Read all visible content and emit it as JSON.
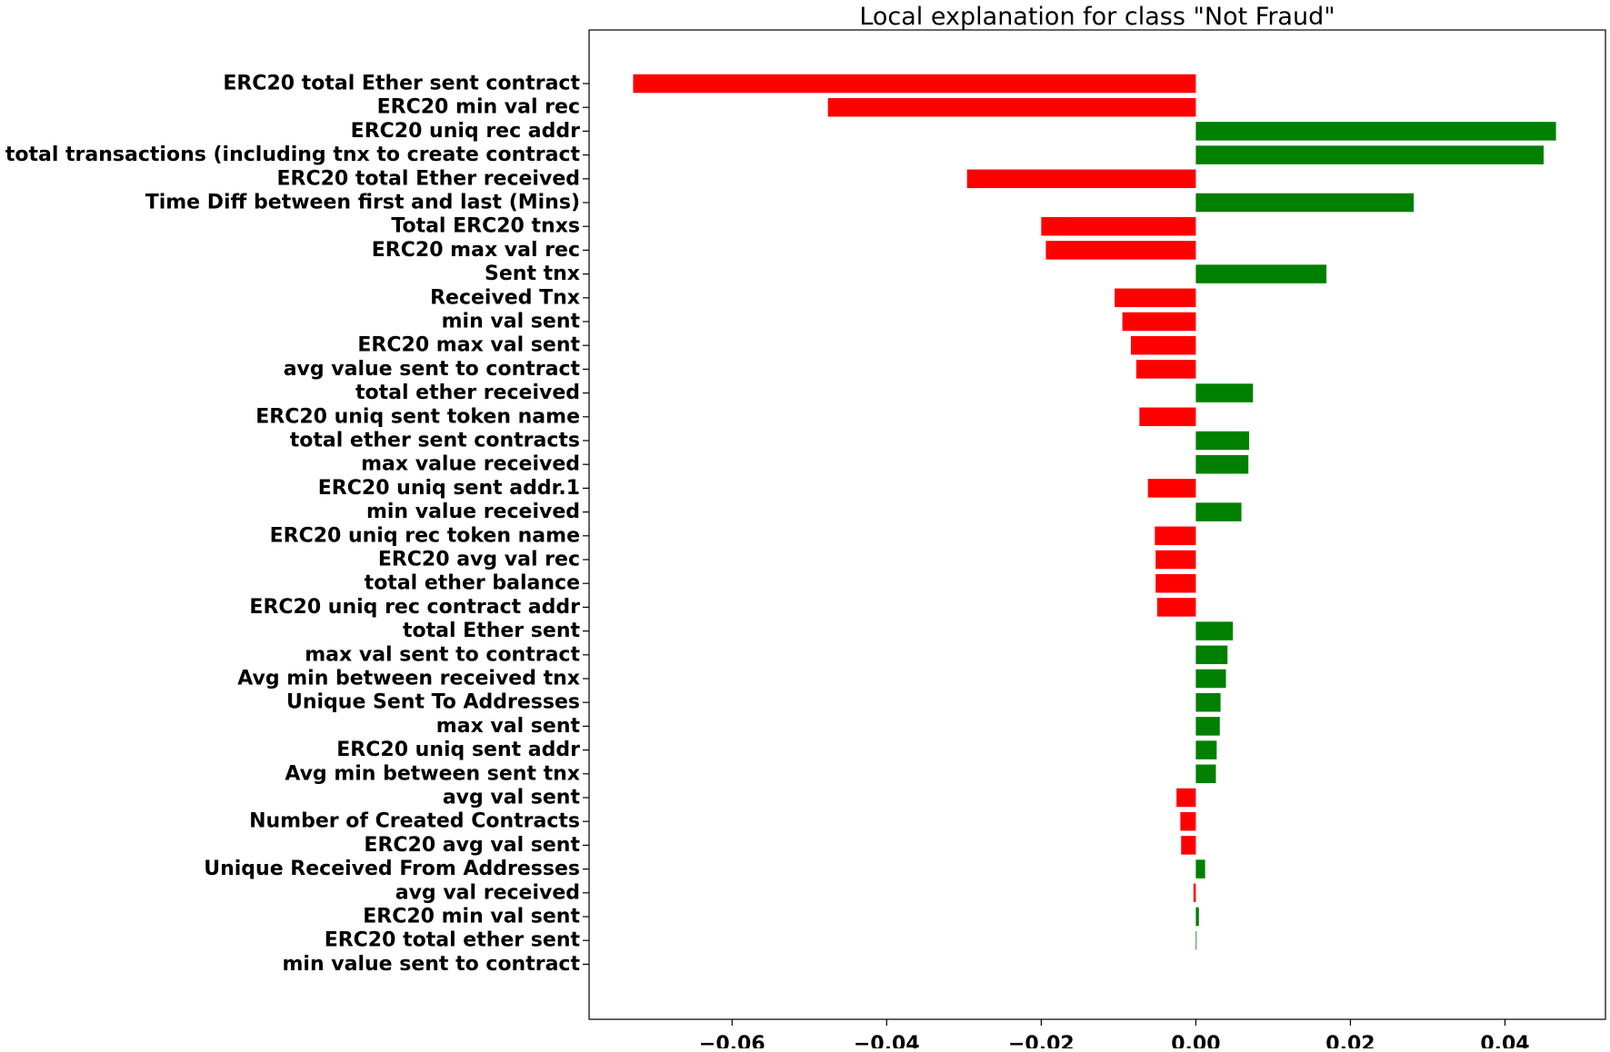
{
  "chart_data": {
    "type": "bar",
    "orientation": "horizontal",
    "title": "Local explanation for class \"Not Fraud\"",
    "xlabel": "",
    "ylabel": "",
    "xlim": [
      -0.0785,
      0.053
    ],
    "xticks": [
      -0.06,
      -0.04,
      -0.02,
      0.0,
      0.02,
      0.04
    ],
    "xtick_labels": [
      "−0.06",
      "−0.04",
      "−0.02",
      "0.00",
      "0.02",
      "0.04"
    ],
    "grid": false,
    "legend": "none",
    "colors": {
      "positive": "#008000",
      "negative": "#ff0000"
    },
    "categories": [
      "ERC20 total Ether sent contract",
      "ERC20 min val rec",
      "ERC20 uniq rec addr",
      "total transactions (including tnx to create contract",
      "ERC20 total Ether received",
      "Time Diff between first and last (Mins)",
      "Total ERC20 tnxs",
      "ERC20 max val rec",
      "Sent tnx",
      "Received Tnx",
      "min val sent",
      "ERC20 max val sent",
      "avg value sent to contract",
      "total ether received",
      "ERC20 uniq sent token name",
      "total ether sent contracts",
      "max value received ",
      "ERC20 uniq sent addr.1",
      "min value received",
      "ERC20 uniq rec token name",
      "ERC20 avg val rec",
      "total ether balance",
      "ERC20 uniq rec contract addr",
      "total Ether sent",
      "max val sent to contract",
      "Avg min between received tnx",
      "Unique Sent To Addresses",
      "max val sent",
      "ERC20 uniq sent addr",
      "Avg min between sent tnx",
      "avg val sent",
      "Number of Created Contracts",
      "ERC20 avg val sent",
      "Unique Received From Addresses",
      "avg val received",
      "ERC20 min val sent",
      "ERC20 total ether sent",
      "min value sent to contract"
    ],
    "values": [
      -0.0728,
      -0.0476,
      0.0466,
      0.045,
      -0.0296,
      0.0282,
      -0.02,
      -0.0194,
      0.0169,
      -0.0105,
      -0.0095,
      -0.0084,
      -0.0077,
      0.0074,
      -0.0073,
      0.0069,
      0.0068,
      -0.0062,
      0.0059,
      -0.0053,
      -0.0052,
      -0.0052,
      -0.005,
      0.0048,
      0.0041,
      0.0039,
      0.0032,
      0.0031,
      0.0027,
      0.0026,
      -0.0025,
      -0.002,
      -0.0019,
      0.0012,
      -0.0003,
      0.0004,
      0.0001,
      0.0
    ]
  }
}
